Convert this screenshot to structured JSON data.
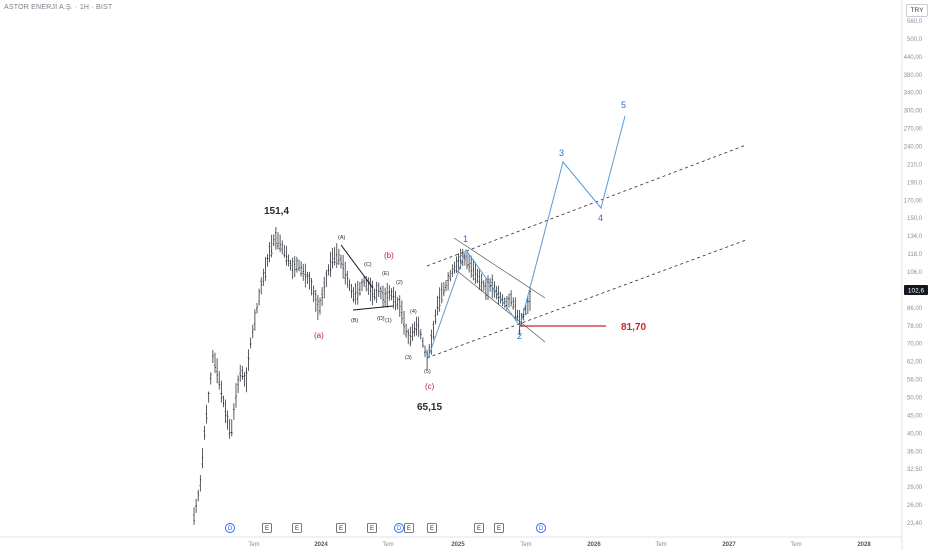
{
  "header": {
    "title": "ASTOR ENERJİ A.Ş. · 1H · BIST",
    "currency": "TRY"
  },
  "colors": {
    "candle": "#131722",
    "projection": "#5b9bd5",
    "wave_blue": "#2a6fc9",
    "wave_red": "#c2185b",
    "support": "#c62828",
    "channel": "#2b2b2b",
    "axis_text": "#8a8d96"
  },
  "price_axis": {
    "ticks": [
      "560,0",
      "500,0",
      "440,00",
      "380,00",
      "340,00",
      "300,00",
      "270,00",
      "240,00",
      "210,0",
      "190,0",
      "170,00",
      "150,0",
      "134,0",
      "118,0",
      "106,0",
      "96,00",
      "86,00",
      "78,00",
      "70,00",
      "62,00",
      "56,00",
      "50,00",
      "45,00",
      "40,00",
      "36,00",
      "32,50",
      "29,00",
      "26,00",
      "23,40"
    ],
    "last_price": "102,6"
  },
  "time_axis": {
    "labels": [
      "Tem",
      "2024",
      "Tem",
      "2025",
      "Tem",
      "2026",
      "Tem",
      "2027",
      "Tem",
      "2028"
    ]
  },
  "chart_data": {
    "type": "candlestick",
    "title": "ASTOR ENERJİ A.Ş. · 1H · BIST",
    "ylim": [
      21,
      600
    ],
    "y_scale": "log",
    "x_labels": [
      "Tem",
      "2024",
      "Tem",
      "2025",
      "Tem",
      "2026",
      "Tem",
      "2027",
      "Tem",
      "2028"
    ],
    "grid": false,
    "last_price": 102.6,
    "levels": [
      {
        "label": "151,4",
        "value": 151.4
      },
      {
        "label": "65,15",
        "value": 65.15
      },
      {
        "label": "81,70",
        "value": 81.7
      }
    ],
    "wave_labels": [
      "(a)",
      "(b)",
      "(c)",
      "(A)",
      "(B)",
      "(C)",
      "(D)",
      "(E)",
      "(1)",
      "(2)",
      "(3)",
      "(4)",
      "(5)",
      "1",
      "2",
      "3",
      "4",
      "5"
    ],
    "projection": [
      {
        "wave": "2",
        "price": 81.7
      },
      {
        "wave": "3",
        "price": 240
      },
      {
        "wave": "4",
        "price": 168
      },
      {
        "wave": "5",
        "price": 310
      }
    ],
    "event_markers": [
      "D",
      "E",
      "E",
      "E",
      "E",
      "D",
      "E",
      "E",
      "E",
      "E",
      "D"
    ]
  }
}
